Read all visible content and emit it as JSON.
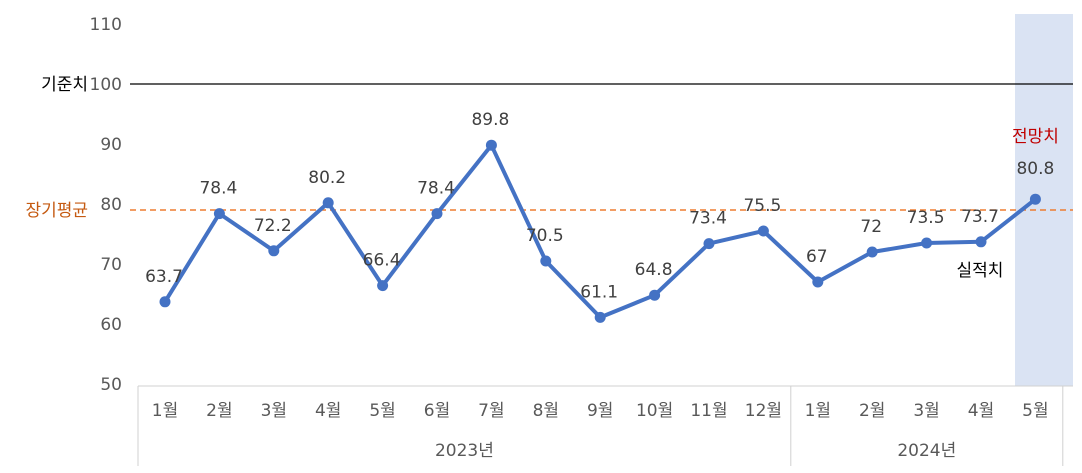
{
  "chart_data": {
    "type": "line",
    "categories": [
      "1월",
      "2월",
      "3월",
      "4월",
      "5월",
      "6월",
      "7월",
      "8월",
      "9월",
      "10월",
      "11월",
      "12월",
      "1월",
      "2월",
      "3월",
      "4월",
      "5월"
    ],
    "groups": [
      {
        "label": "2023년",
        "count": 12
      },
      {
        "label": "2024년",
        "count": 5
      }
    ],
    "values": [
      63.7,
      78.4,
      72.2,
      80.2,
      66.4,
      78.4,
      89.8,
      70.5,
      61.1,
      64.8,
      73.4,
      75.5,
      67,
      72,
      73.5,
      73.7,
      80.8
    ],
    "value_labels": [
      "63.7",
      "78.4",
      "72.2",
      "80.2",
      "66.4",
      "78.4",
      "89.8",
      "70.5",
      "61.1",
      "64.8",
      "73.4",
      "75.5",
      "67",
      "72",
      "73.5",
      "73.7",
      ""
    ],
    "ylim": [
      50,
      110
    ],
    "yticks": [
      "50",
      "60",
      "70",
      "80",
      "90",
      "100",
      "110"
    ],
    "reference_lines": [
      {
        "label": "기준치",
        "value": 100,
        "color": "#000000",
        "style": "solid"
      },
      {
        "label": "장기평균",
        "value": 79,
        "color": "#ED7D31",
        "style": "dashed"
      }
    ],
    "forecast": {
      "label": "전망치",
      "value_label": "80.8",
      "color": "#C00000",
      "highlight_color": "#DAE3F3",
      "index": 16
    },
    "actual_label": "실적치",
    "series_color": "#4472C4"
  }
}
